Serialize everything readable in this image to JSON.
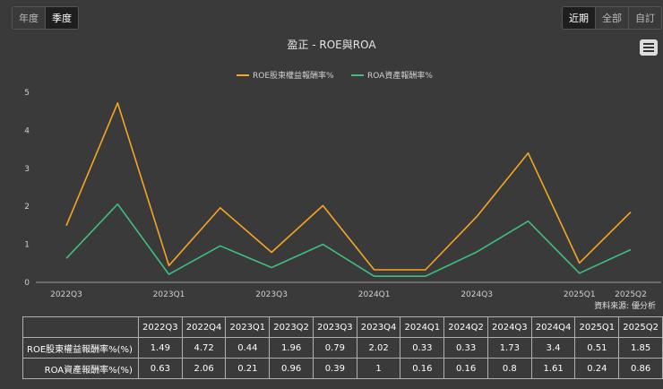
{
  "controls": {
    "period": [
      "年度",
      "季度"
    ],
    "period_active": 1,
    "range": [
      "近期",
      "全部",
      "自訂"
    ],
    "range_active": 0
  },
  "chart_data": {
    "type": "line",
    "title": "盈正 - ROE與ROA",
    "categories": [
      "2022Q3",
      "2022Q4",
      "2023Q1",
      "2023Q2",
      "2023Q3",
      "2023Q4",
      "2024Q1",
      "2024Q2",
      "2024Q3",
      "2024Q4",
      "2025Q1",
      "2025Q2"
    ],
    "x_tick_labels": [
      "2022Q3",
      "2023Q1",
      "2023Q3",
      "2024Q1",
      "2024Q3",
      "2025Q1",
      "2025Q2"
    ],
    "ylim": [
      0,
      5
    ],
    "yticks": [
      0,
      1,
      2,
      3,
      4,
      5
    ],
    "legend_position": "top-center",
    "grid": false,
    "series": [
      {
        "name": "ROE股東權益報酬率%",
        "color": "#f5a623",
        "values": [
          1.49,
          4.72,
          0.44,
          1.96,
          0.79,
          2.02,
          0.33,
          0.33,
          1.73,
          3.4,
          0.51,
          1.85
        ]
      },
      {
        "name": "ROA資產報酬率%",
        "color": "#3fbf7f",
        "values": [
          0.63,
          2.06,
          0.21,
          0.96,
          0.39,
          1,
          0.16,
          0.16,
          0.8,
          1.61,
          0.24,
          0.86
        ]
      }
    ],
    "source": "資料來源: 優分析"
  },
  "table": {
    "headers": [
      "2022Q3",
      "2022Q4",
      "2023Q1",
      "2023Q2",
      "2023Q3",
      "2023Q4",
      "2024Q1",
      "2024Q2",
      "2024Q3",
      "2024Q4",
      "2025Q1",
      "2025Q2"
    ],
    "rows": [
      {
        "label": "ROE股東權益報酬率%(%)",
        "values": [
          "1.49",
          "4.72",
          "0.44",
          "1.96",
          "0.79",
          "2.02",
          "0.33",
          "0.33",
          "1.73",
          "3.4",
          "0.51",
          "1.85"
        ]
      },
      {
        "label": "ROA資產報酬率%(%)",
        "values": [
          "0.63",
          "2.06",
          "0.21",
          "0.96",
          "0.39",
          "1",
          "0.16",
          "0.16",
          "0.8",
          "1.61",
          "0.24",
          "0.86"
        ]
      }
    ]
  }
}
